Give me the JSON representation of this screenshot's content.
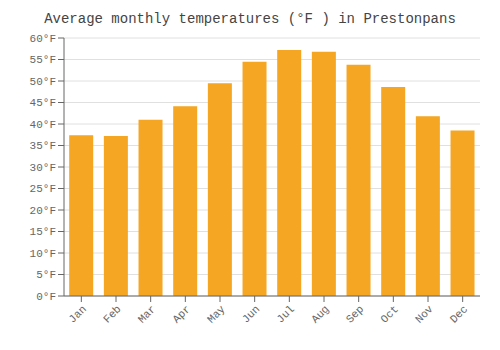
{
  "chart_data": {
    "type": "bar",
    "title": "Average monthly temperatures (°F ) in Prestonpans",
    "categories": [
      "Jan",
      "Feb",
      "Mar",
      "Apr",
      "May",
      "Jun",
      "Jul",
      "Aug",
      "Sep",
      "Oct",
      "Nov",
      "Dec"
    ],
    "values": [
      37.4,
      37.2,
      41.0,
      44.1,
      49.5,
      54.5,
      57.2,
      56.8,
      53.8,
      48.6,
      41.8,
      38.5
    ],
    "color": "#F5A623",
    "ylim": [
      0,
      60
    ],
    "yticks": [
      {
        "value": 0,
        "label": "0°F"
      },
      {
        "value": 5,
        "label": "5°F"
      },
      {
        "value": 10,
        "label": "10°F"
      },
      {
        "value": 15,
        "label": "15°F"
      },
      {
        "value": 20,
        "label": "20°F"
      },
      {
        "value": 25,
        "label": "25°F"
      },
      {
        "value": 30,
        "label": "30°F"
      },
      {
        "value": 35,
        "label": "35°F"
      },
      {
        "value": 40,
        "label": "40°F"
      },
      {
        "value": 45,
        "label": "45°F"
      },
      {
        "value": 50,
        "label": "50°F"
      },
      {
        "value": 55,
        "label": "55°F"
      },
      {
        "value": 60,
        "label": "60°F"
      }
    ],
    "grid": true
  }
}
